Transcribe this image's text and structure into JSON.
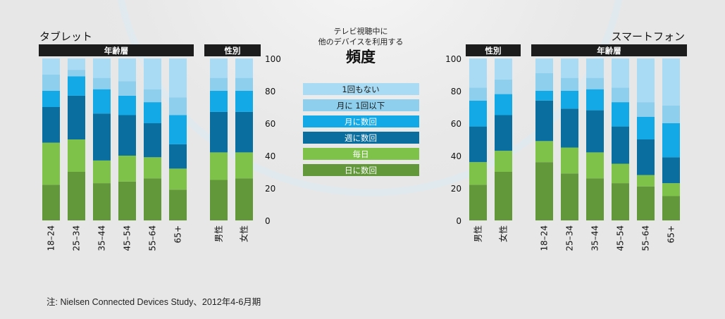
{
  "center": {
    "subtitle_line1": "テレビ視聴中に",
    "subtitle_line2": "他のデバイスを利用する",
    "title": "頻度"
  },
  "legend": [
    {
      "label": "1回もない",
      "color": "#a9dcf4",
      "text_color": "#1a1a1a"
    },
    {
      "label": "月に 1回以下",
      "color": "#8ecfee",
      "text_color": "#1a1a1a"
    },
    {
      "label": "月に数回",
      "color": "#12a9e6",
      "text_color": "#ffffff"
    },
    {
      "label": "週に数回",
      "color": "#0a6e9f",
      "text_color": "#ffffff"
    },
    {
      "label": "毎日",
      "color": "#7ec24a",
      "text_color": "#ffffff"
    },
    {
      "label": "日に数回",
      "color": "#62983a",
      "text_color": "#ffffff"
    }
  ],
  "footnote": "注: Nielsen Connected Devices Study、2012年4-6月期",
  "chart_data": [
    {
      "type": "bar",
      "stacked": true,
      "title": "タブレット",
      "groups": [
        {
          "label": "年齢層",
          "categories": [
            "18–24",
            "25–34",
            "35–44",
            "45–54",
            "55–64",
            "65+"
          ]
        },
        {
          "label": "性別",
          "categories": [
            "男性",
            "女性"
          ]
        }
      ],
      "categories": [
        "18–24",
        "25–34",
        "35–44",
        "45–54",
        "55–64",
        "65+",
        "男性",
        "女性"
      ],
      "ylim": [
        0,
        100
      ],
      "yticks": [
        0,
        20,
        40,
        60,
        80,
        100
      ],
      "y_axis_side": "right",
      "series": [
        {
          "name": "日に数回",
          "values": [
            22,
            30,
            23,
            24,
            26,
            19,
            25,
            26
          ]
        },
        {
          "name": "毎日",
          "values": [
            26,
            20,
            14,
            16,
            13,
            13,
            17,
            16
          ]
        },
        {
          "name": "週に数回",
          "values": [
            22,
            27,
            29,
            25,
            21,
            15,
            25,
            25
          ]
        },
        {
          "name": "月に数回",
          "values": [
            10,
            12,
            15,
            12,
            13,
            18,
            13,
            13
          ]
        },
        {
          "name": "月に 1回以下",
          "values": [
            10,
            4,
            7,
            9,
            8,
            11,
            8,
            8
          ]
        },
        {
          "name": "1回もない",
          "values": [
            10,
            7,
            12,
            14,
            19,
            24,
            12,
            12
          ]
        }
      ]
    },
    {
      "type": "bar",
      "stacked": true,
      "title": "スマートフォン",
      "groups": [
        {
          "label": "性別",
          "categories": [
            "男性",
            "女性"
          ]
        },
        {
          "label": "年齢層",
          "categories": [
            "18–24",
            "25–34",
            "35–44",
            "45–54",
            "55–64",
            "65+"
          ]
        }
      ],
      "categories": [
        "男性",
        "女性",
        "18–24",
        "25–34",
        "35–44",
        "45–54",
        "55–64",
        "65+"
      ],
      "ylim": [
        0,
        100
      ],
      "yticks": [
        0,
        20,
        40,
        60,
        80,
        100
      ],
      "y_axis_side": "left",
      "series": [
        {
          "name": "日に数回",
          "values": [
            22,
            30,
            36,
            29,
            26,
            23,
            21,
            15
          ]
        },
        {
          "name": "毎日",
          "values": [
            14,
            13,
            13,
            16,
            16,
            12,
            7,
            8
          ]
        },
        {
          "name": "週に数回",
          "values": [
            22,
            22,
            25,
            24,
            26,
            23,
            22,
            16
          ]
        },
        {
          "name": "月に数回",
          "values": [
            16,
            13,
            6,
            11,
            13,
            15,
            14,
            21
          ]
        },
        {
          "name": "月に 1回以下",
          "values": [
            8,
            9,
            11,
            8,
            7,
            9,
            9,
            11
          ]
        },
        {
          "name": "1回もない",
          "values": [
            18,
            13,
            9,
            12,
            12,
            18,
            27,
            29
          ]
        }
      ]
    }
  ]
}
